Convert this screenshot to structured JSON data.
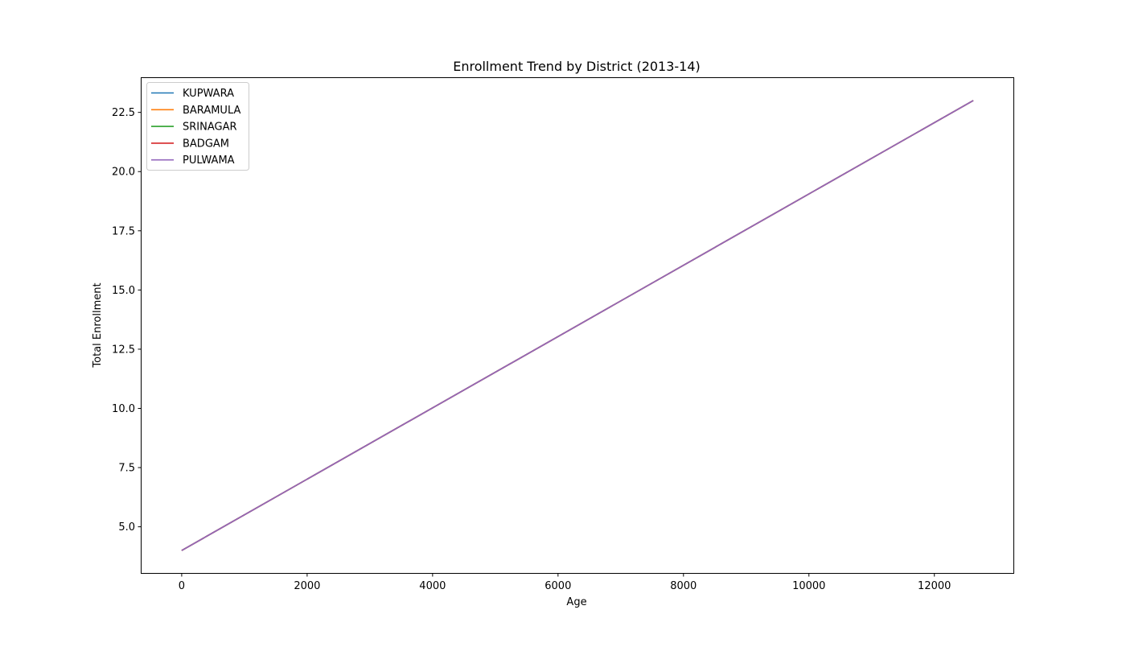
{
  "chart_data": {
    "type": "line",
    "title": "Enrollment Trend by District (2013-14)",
    "xlabel": "Age",
    "ylabel": "Total Enrollment",
    "xlim": [
      -640,
      13260
    ],
    "ylim": [
      3.05,
      23.95
    ],
    "xticks": [
      0,
      2000,
      4000,
      6000,
      8000,
      10000,
      12000
    ],
    "xtick_labels": [
      "0",
      "2000",
      "4000",
      "6000",
      "8000",
      "10000",
      "12000"
    ],
    "yticks": [
      5.0,
      7.5,
      10.0,
      12.5,
      15.0,
      17.5,
      20.0,
      22.5
    ],
    "ytick_labels": [
      "5.0",
      "7.5",
      "10.0",
      "12.5",
      "15.0",
      "17.5",
      "20.0",
      "22.5"
    ],
    "grid": false,
    "legend_position": "upper-left",
    "series": [
      {
        "name": "KUPWARA",
        "color": "#1f77b4",
        "x": [
          0,
          12620
        ],
        "y": [
          4,
          23
        ]
      },
      {
        "name": "BARAMULA",
        "color": "#ff7f0e",
        "x": [
          0,
          12620
        ],
        "y": [
          4,
          23
        ]
      },
      {
        "name": "SRINAGAR",
        "color": "#2ca02c",
        "x": [
          0,
          12620
        ],
        "y": [
          4,
          23
        ]
      },
      {
        "name": "BADGAM",
        "color": "#d62728",
        "x": [
          0,
          12620
        ],
        "y": [
          4,
          23
        ]
      },
      {
        "name": "PULWAMA",
        "color": "#9467bd",
        "x": [
          0,
          12620
        ],
        "y": [
          4,
          23
        ]
      }
    ]
  }
}
